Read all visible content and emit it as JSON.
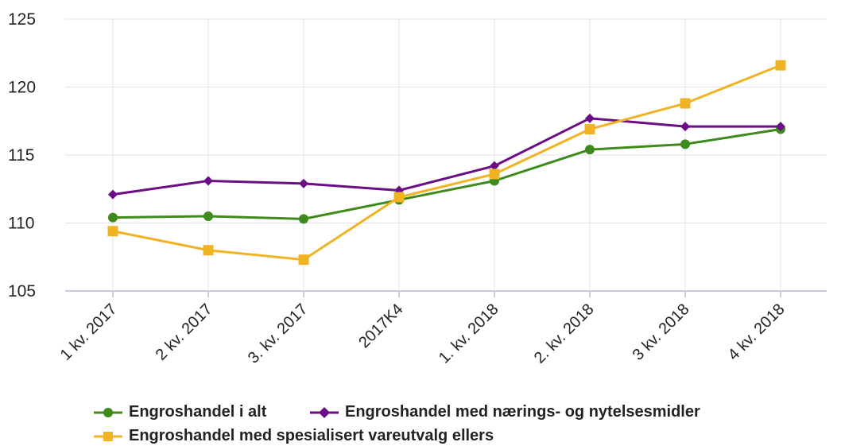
{
  "chart_data": {
    "type": "line",
    "categories": [
      "1 kv. 2017",
      "2 kv. 2017",
      "3. kv. 2017",
      "2017K4",
      "1. kv. 2018",
      "2. kv. 2018",
      "3 kv. 2018",
      "4 kv. 2018"
    ],
    "series": [
      {
        "name": "Engroshandel i alt",
        "color": "#3e8b1c",
        "marker": "circle",
        "values": [
          110.4,
          110.5,
          110.3,
          111.7,
          113.1,
          115.4,
          115.8,
          116.9
        ]
      },
      {
        "name": "Engroshandel med nærings- og nytelsesmidler",
        "color": "#6c0c86",
        "marker": "diamond",
        "values": [
          112.1,
          113.1,
          112.9,
          112.4,
          114.2,
          117.7,
          117.1,
          117.1
        ]
      },
      {
        "name": "Engroshandel med spesialisert vareutvalg ellers",
        "color": "#f0b323",
        "marker": "square",
        "values": [
          109.4,
          108.0,
          107.3,
          111.9,
          113.6,
          116.9,
          118.8,
          121.6
        ]
      }
    ],
    "ylim": [
      105,
      125
    ],
    "yticks": [
      105,
      110,
      115,
      120,
      125
    ],
    "grid": true,
    "legend_position": "bottom"
  }
}
